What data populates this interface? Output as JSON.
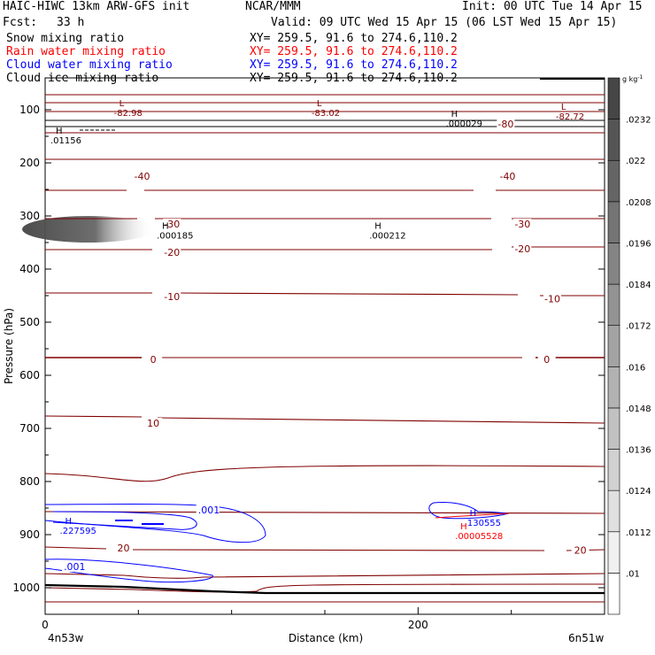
{
  "header": {
    "title_left": "HAIC-HIWC 13km ARW-GFS init",
    "title_mid": "NCAR/MMM",
    "init": "Init: 00 UTC Tue 14 Apr 15",
    "fcst_label": "Fcst:",
    "fcst_value": "33 h",
    "valid": "Valid: 09 UTC Wed 15 Apr 15 (06 LST Wed 15 Apr 15)",
    "fields": [
      {
        "name": "Snow mixing ratio",
        "xy": "XY= 259.5, 91.6 to 274.6,110.2",
        "color": "#000000"
      },
      {
        "name": "Rain water mixing ratio",
        "xy": "XY= 259.5, 91.6 to 274.6,110.2",
        "color": "#ff0000"
      },
      {
        "name": "Cloud water mixing ratio",
        "xy": "XY= 259.5, 91.6 to 274.6,110.2",
        "color": "#0000ff"
      },
      {
        "name": "Cloud ice mixing ratio",
        "xy": "XY= 259.5, 91.6 to 274.6,110.2",
        "color": "#000000"
      }
    ]
  },
  "chart_data": {
    "type": "contour",
    "xlabel": "Distance (km)",
    "ylabel": "Pressure (hPa)",
    "xlim": [
      0,
      300
    ],
    "ylim": [
      1050,
      40
    ],
    "x_ticks": [
      0,
      200
    ],
    "y_ticks": [
      100,
      200,
      300,
      400,
      500,
      600,
      700,
      800,
      900,
      1000
    ],
    "x_endpoint_labels": [
      "4n53w",
      "6n51w"
    ],
    "colorbar": {
      "unit": "g kg",
      "unit_exp": "-1",
      "levels": [
        ".01",
        ".0112",
        ".0124",
        ".0136",
        ".0148",
        ".016",
        ".0172",
        ".0184",
        ".0196",
        ".0208",
        ".022",
        ".0232"
      ]
    },
    "temperature_contour_labels": [
      {
        "text": "-80",
        "x": 247,
        "p": 127
      },
      {
        "text": "-40",
        "x": 52,
        "p": 225
      },
      {
        "text": "-40",
        "x": 248,
        "p": 225
      },
      {
        "text": "-30",
        "x": 68,
        "p": 315
      },
      {
        "text": "-30",
        "x": 256,
        "p": 315
      },
      {
        "text": "-20",
        "x": 68,
        "p": 368
      },
      {
        "text": "-20",
        "x": 256,
        "p": 362
      },
      {
        "text": "-10",
        "x": 68,
        "p": 452
      },
      {
        "text": "-10",
        "x": 272,
        "p": 456
      },
      {
        "text": "0",
        "x": 58,
        "p": 570
      },
      {
        "text": "0",
        "x": 269,
        "p": 570
      },
      {
        "text": "10",
        "x": 58,
        "p": 690
      },
      {
        "text": "20",
        "x": 42,
        "p": 925
      },
      {
        "text": "20",
        "x": 287,
        "p": 929
      }
    ],
    "extrema": [
      {
        "kind": "L",
        "value": "-82.98",
        "x": 34,
        "p": 93,
        "color": "#800000"
      },
      {
        "kind": "L",
        "value": "-83.02",
        "x": 140,
        "p": 93,
        "color": "#800000"
      },
      {
        "kind": "L",
        "value": "-82.72",
        "x": 271,
        "p": 100,
        "color": "#800000"
      },
      {
        "kind": "H",
        "value": ".000029",
        "x": 212,
        "p": 113,
        "color": "#000000"
      },
      {
        "kind": "H",
        "value": ".000185",
        "x": 57,
        "p": 324,
        "color": "#000000"
      },
      {
        "kind": "H",
        "value": ".000212",
        "x": 171,
        "p": 324,
        "color": "#000000"
      },
      {
        "kind": "H",
        "value": ".01156",
        "x": 0,
        "p": 145,
        "color": "#000000"
      },
      {
        "kind": "H",
        "value": ".227595",
        "x": 5,
        "p": 880,
        "color": "#0000ff"
      },
      {
        "kind": "H",
        "value": ".130555",
        "x": 222,
        "p": 865,
        "color": "#0000ff"
      },
      {
        "kind": "H",
        "value": ".00005528",
        "x": 217,
        "p": 890,
        "color": "#ff0000"
      }
    ],
    "cloud_water_labels": [
      {
        "text": ".001",
        "x": 82,
        "p": 853
      },
      {
        "text": ".001",
        "x": 10,
        "p": 960
      }
    ]
  }
}
